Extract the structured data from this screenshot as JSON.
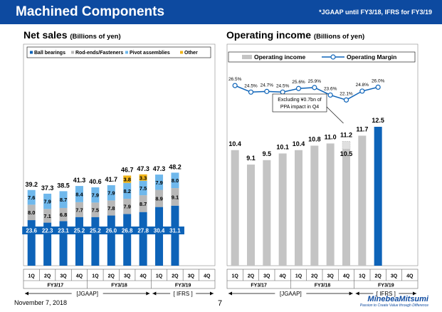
{
  "header": {
    "title": "Machined Components",
    "note": "*JGAAP until FY3/18, IFRS for FY3/19"
  },
  "footer": {
    "date": "November 7, 2018",
    "page": "7",
    "brand": "MinebeaMitsumi",
    "tagline": "Passion to Create Value through Difference"
  },
  "colors": {
    "ball": "#0d63b8",
    "rod": "#b8b8b8",
    "pivot": "#6fb8ec",
    "other": "#f0b419",
    "oi": "#c4c4c4",
    "highlight": "#0d63b8",
    "margin": "#0d63b8"
  },
  "chart_data": [
    {
      "type": "bar",
      "stacked": true,
      "title": "Net sales",
      "subtitle": "(Billions of yen)",
      "categories": [
        "1Q",
        "2Q",
        "3Q",
        "4Q",
        "1Q",
        "2Q",
        "3Q",
        "4Q",
        "1Q",
        "2Q",
        "3Q",
        "4Q"
      ],
      "periods": [
        {
          "label": "FY3/17",
          "basis": "[JGAAP]"
        },
        {
          "label": "FY3/18",
          "basis": "[JGAAP]"
        },
        {
          "label": "FY3/19",
          "basis": "[ IFRS ]"
        }
      ],
      "basis_labels": {
        "jgaap": "[JGAAP]",
        "ifrs": "[ IFRS ]"
      },
      "series": [
        {
          "name": "Ball bearings",
          "values": [
            23.6,
            22.3,
            23.1,
            25.2,
            25.2,
            26.0,
            26.8,
            27.8,
            30.4,
            31.1,
            null,
            null
          ]
        },
        {
          "name": "Rod-ends/Fasteners",
          "values": [
            8.0,
            7.1,
            6.8,
            7.7,
            7.5,
            7.8,
            7.9,
            8.7,
            8.9,
            9.1,
            null,
            null
          ]
        },
        {
          "name": "Pivot assemblies",
          "values": [
            7.6,
            7.9,
            8.7,
            8.4,
            7.9,
            7.9,
            8.2,
            7.5,
            7.9,
            8.0,
            null,
            null
          ]
        },
        {
          "name": "Other",
          "values": [
            0,
            0,
            0,
            0,
            0,
            0,
            3.8,
            3.3,
            0,
            0,
            null,
            null
          ]
        }
      ],
      "totals": [
        39.2,
        37.3,
        38.5,
        41.3,
        40.6,
        41.7,
        46.7,
        47.3,
        47.3,
        48.2,
        null,
        null
      ],
      "ylim": [
        0,
        56
      ]
    },
    {
      "type": "bar+line",
      "title": "Operating income",
      "subtitle": "(Billions of yen)",
      "categories": [
        "1Q",
        "2Q",
        "3Q",
        "4Q",
        "1Q",
        "2Q",
        "3Q",
        "4Q",
        "1Q",
        "2Q",
        "3Q",
        "4Q"
      ],
      "series": [
        {
          "name": "Operating income",
          "values": [
            10.4,
            9.1,
            9.5,
            10.1,
            10.4,
            10.8,
            11.0,
            10.5,
            11.7,
            12.5,
            null,
            null
          ]
        },
        {
          "name": "Operating Margin",
          "values": [
            26.5,
            24.5,
            24.7,
            24.5,
            25.6,
            25.9,
            23.6,
            22.1,
            24.8,
            26.0,
            null,
            null
          ]
        }
      ],
      "margin_labels": [
        "26.5%",
        "24.5%",
        "24.7%",
        "24.5%",
        "25.6%",
        "25.9%",
        "23.6%",
        "22.1%",
        "24.8%",
        "26.0%"
      ],
      "q4_adjusted_total": 11.2,
      "annotation": [
        "Excluding ¥0.7bn of",
        "PPA impact in Q4"
      ],
      "ylim": [
        0,
        16
      ],
      "margin_ylim": [
        10,
        30
      ]
    }
  ]
}
